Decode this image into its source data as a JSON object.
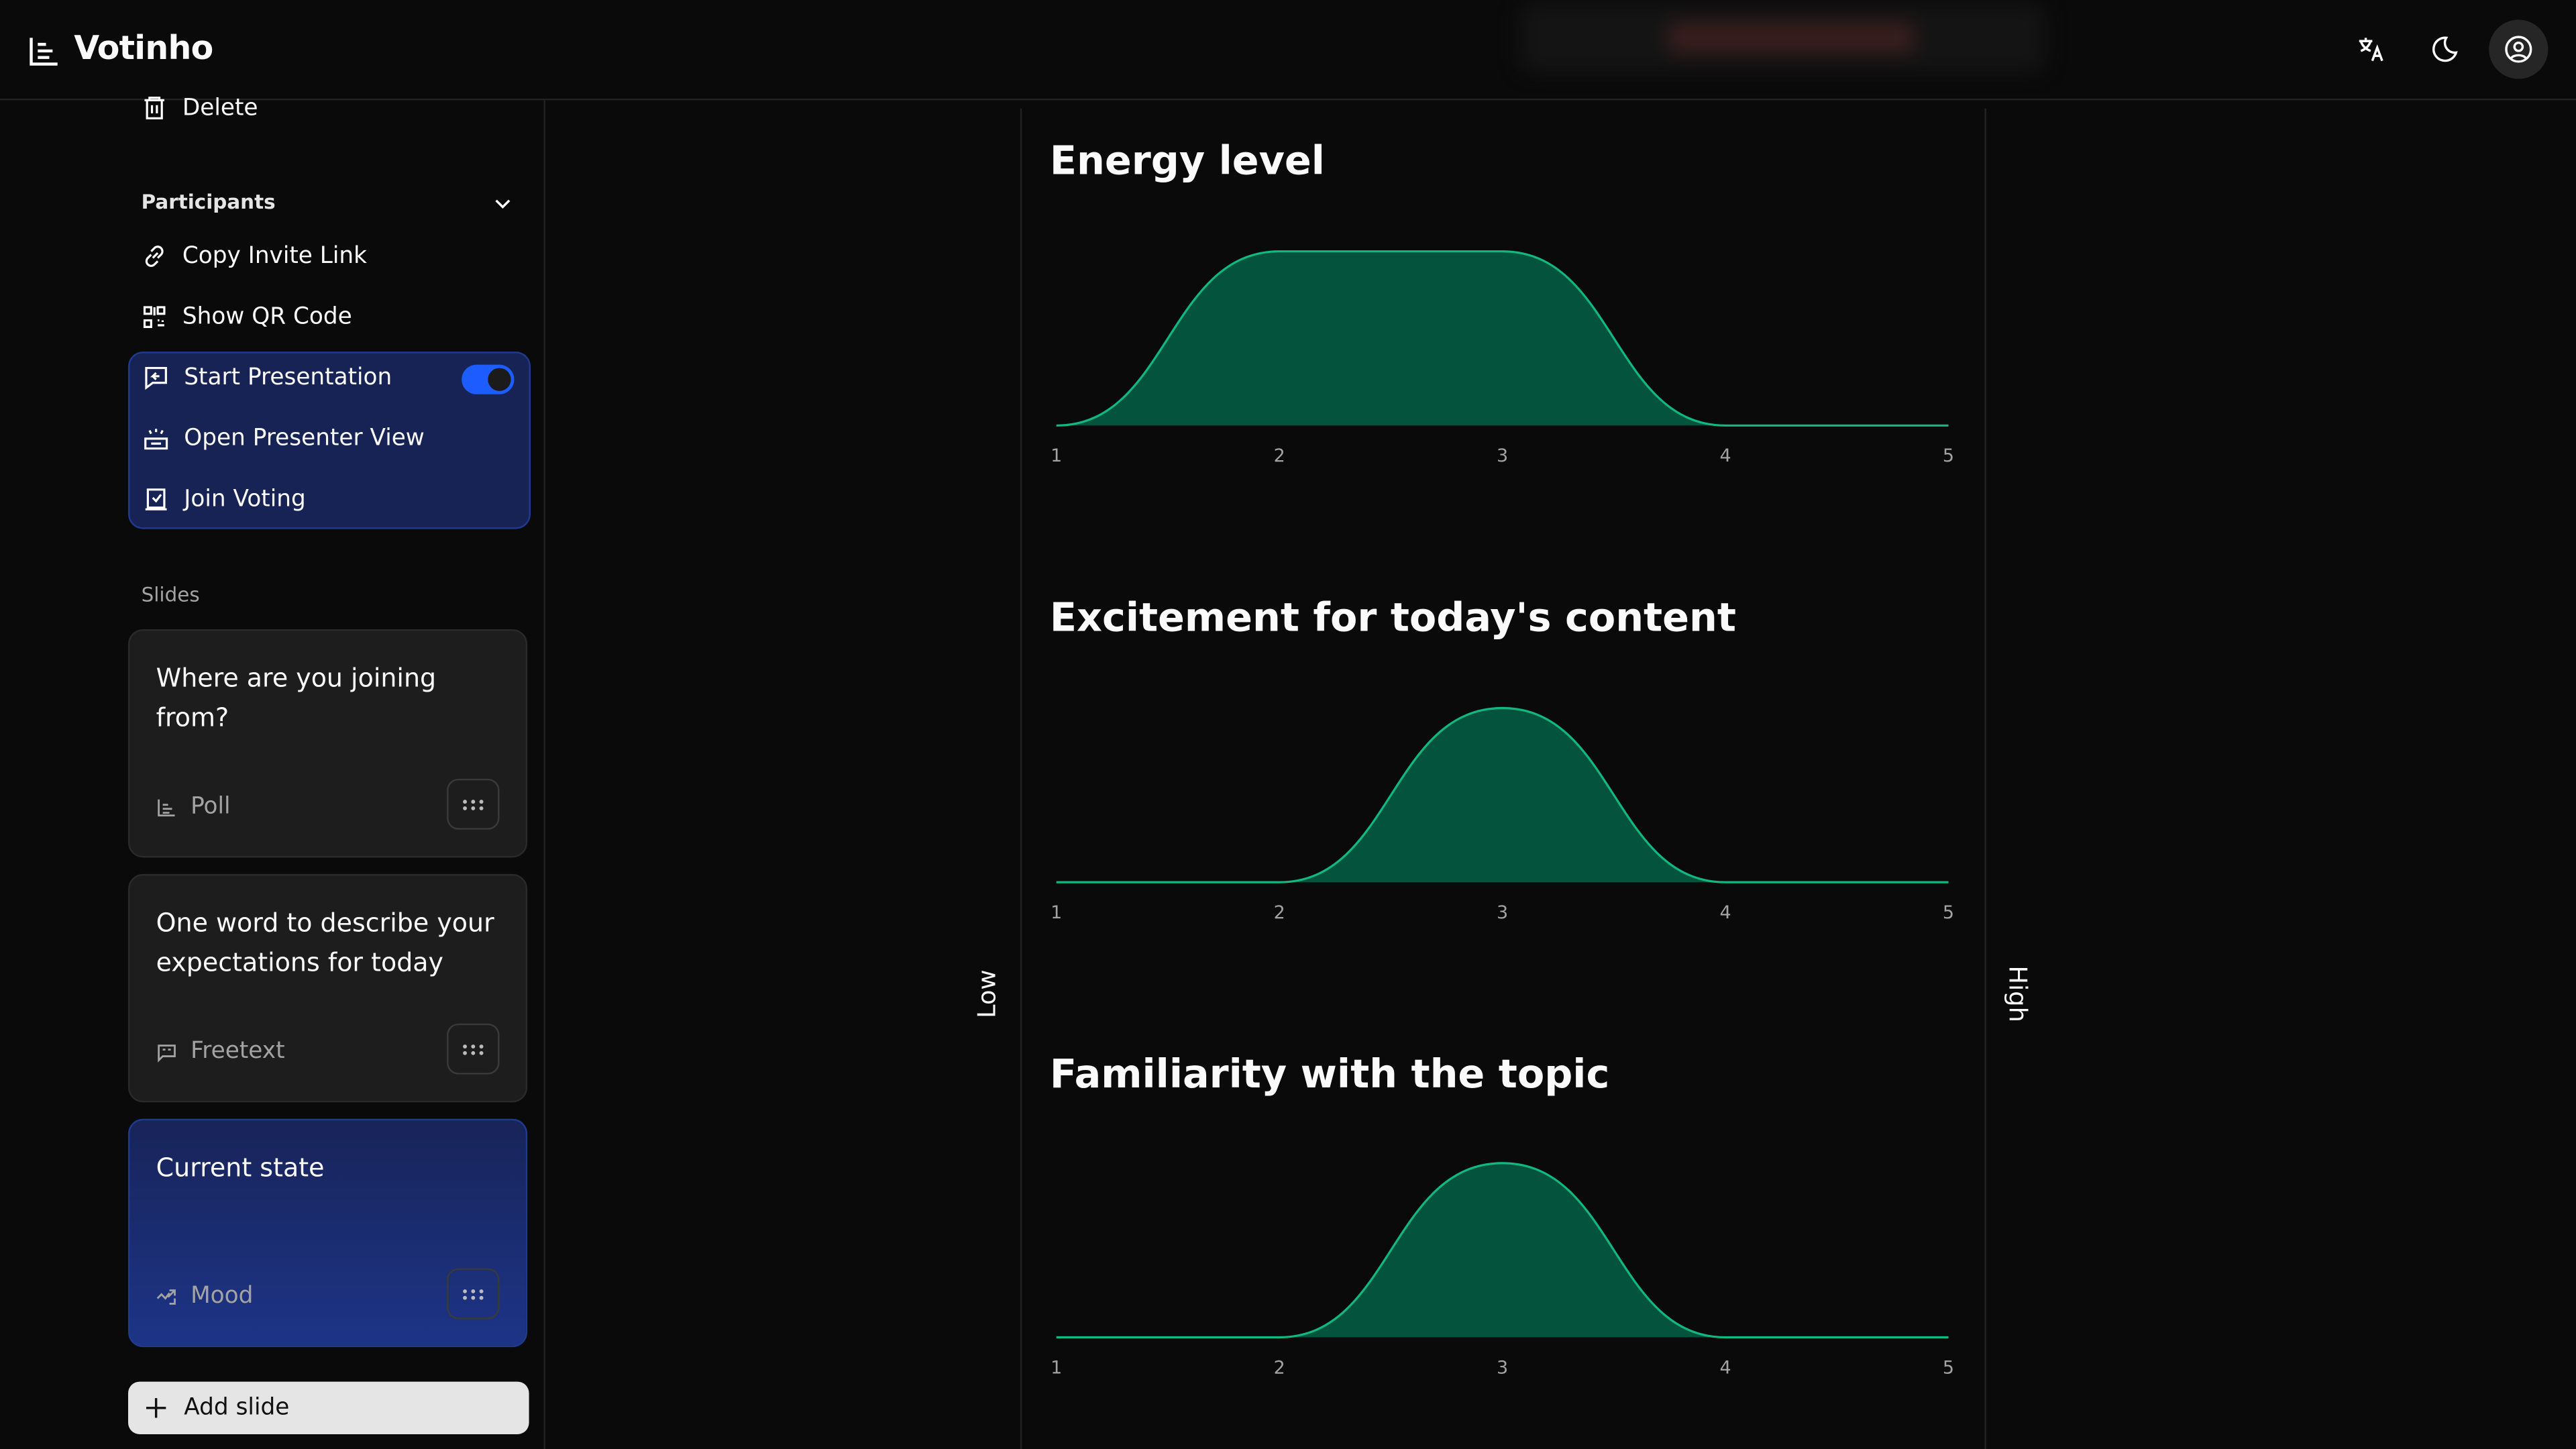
{
  "header": {
    "app_name": "Votinho",
    "icons": [
      "bar-chart-icon",
      "translate-icon",
      "moon-icon",
      "user-circle-icon"
    ]
  },
  "sidebar": {
    "delete_label": "Delete",
    "participants_label": "Participants",
    "copy_invite_label": "Copy Invite Link",
    "show_qr_label": "Show QR Code",
    "start_presentation_label": "Start Presentation",
    "start_presentation_on": true,
    "presenter_view_label": "Open Presenter View",
    "join_voting_label": "Join Voting",
    "slides_label": "Slides",
    "slides": [
      {
        "title": "Where are you joining from?",
        "type": "Poll",
        "icon": "poll-icon",
        "active": false
      },
      {
        "title": "One word to describe your expectations for today",
        "type": "Freetext",
        "icon": "freetext-icon",
        "active": false
      },
      {
        "title": "Current state",
        "type": "Mood",
        "icon": "mood-icon",
        "active": true
      }
    ],
    "add_slide_label": "Add slide"
  },
  "main": {
    "low_label": "Low",
    "high_label": "High"
  },
  "colors": {
    "accent": "#1d5cff",
    "curve_stroke": "#10b981",
    "curve_fill": "#04533d"
  },
  "chart_data": [
    {
      "type": "area",
      "title": "Energy level",
      "x": [
        1,
        2,
        3,
        4,
        5
      ],
      "values": [
        0,
        1,
        1,
        0,
        0
      ],
      "xticks": [
        "1",
        "2",
        "3",
        "4",
        "5"
      ],
      "grid": false
    },
    {
      "type": "area",
      "title": "Excitement for today's content",
      "x": [
        1,
        2,
        3,
        4,
        5
      ],
      "values": [
        0,
        0,
        1,
        0,
        0
      ],
      "xticks": [
        "1",
        "2",
        "3",
        "4",
        "5"
      ],
      "grid": false
    },
    {
      "type": "area",
      "title": "Familiarity with the topic",
      "x": [
        1,
        2,
        3,
        4,
        5
      ],
      "values": [
        0,
        0,
        1,
        0,
        0
      ],
      "xticks": [
        "1",
        "2",
        "3",
        "4",
        "5"
      ],
      "grid": false
    }
  ]
}
